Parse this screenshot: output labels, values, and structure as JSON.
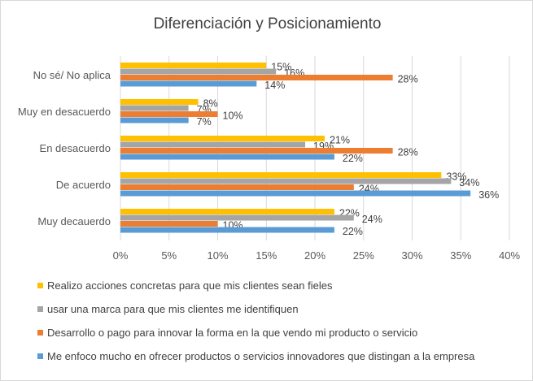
{
  "chart_data": {
    "type": "bar",
    "orientation": "horizontal",
    "title": "Diferenciación y Posicionamiento",
    "categories": [
      "No sé/ No aplica",
      "Muy en desacuerdo",
      "En desacuerdo",
      "De acuerdo",
      "Muy decauerdo"
    ],
    "series": [
      {
        "name": "Realizo acciones concretas para que mis clientes sean fieles",
        "color": "#FFC000",
        "values": [
          15,
          8,
          21,
          33,
          22
        ]
      },
      {
        "name": "usar una marca para que mis clientes me identifiquen",
        "color": "#A5A5A5",
        "values": [
          16,
          7,
          19,
          34,
          24
        ]
      },
      {
        "name": "Desarrollo o pago para innovar la forma en la que vendo mi producto o servicio",
        "color": "#ED7D31",
        "values": [
          28,
          10,
          28,
          24,
          10
        ]
      },
      {
        "name": "Me enfoco mucho en ofrecer productos o servicios innovadores que distingan a la empresa",
        "color": "#5B9BD5",
        "values": [
          14,
          7,
          22,
          36,
          22
        ]
      }
    ],
    "xlim": [
      0,
      40
    ],
    "xticks": [
      "0%",
      "5%",
      "10%",
      "15%",
      "20%",
      "25%",
      "30%",
      "35%",
      "40%"
    ],
    "grid": true,
    "legend_position": "bottom",
    "value_suffix": "%"
  }
}
